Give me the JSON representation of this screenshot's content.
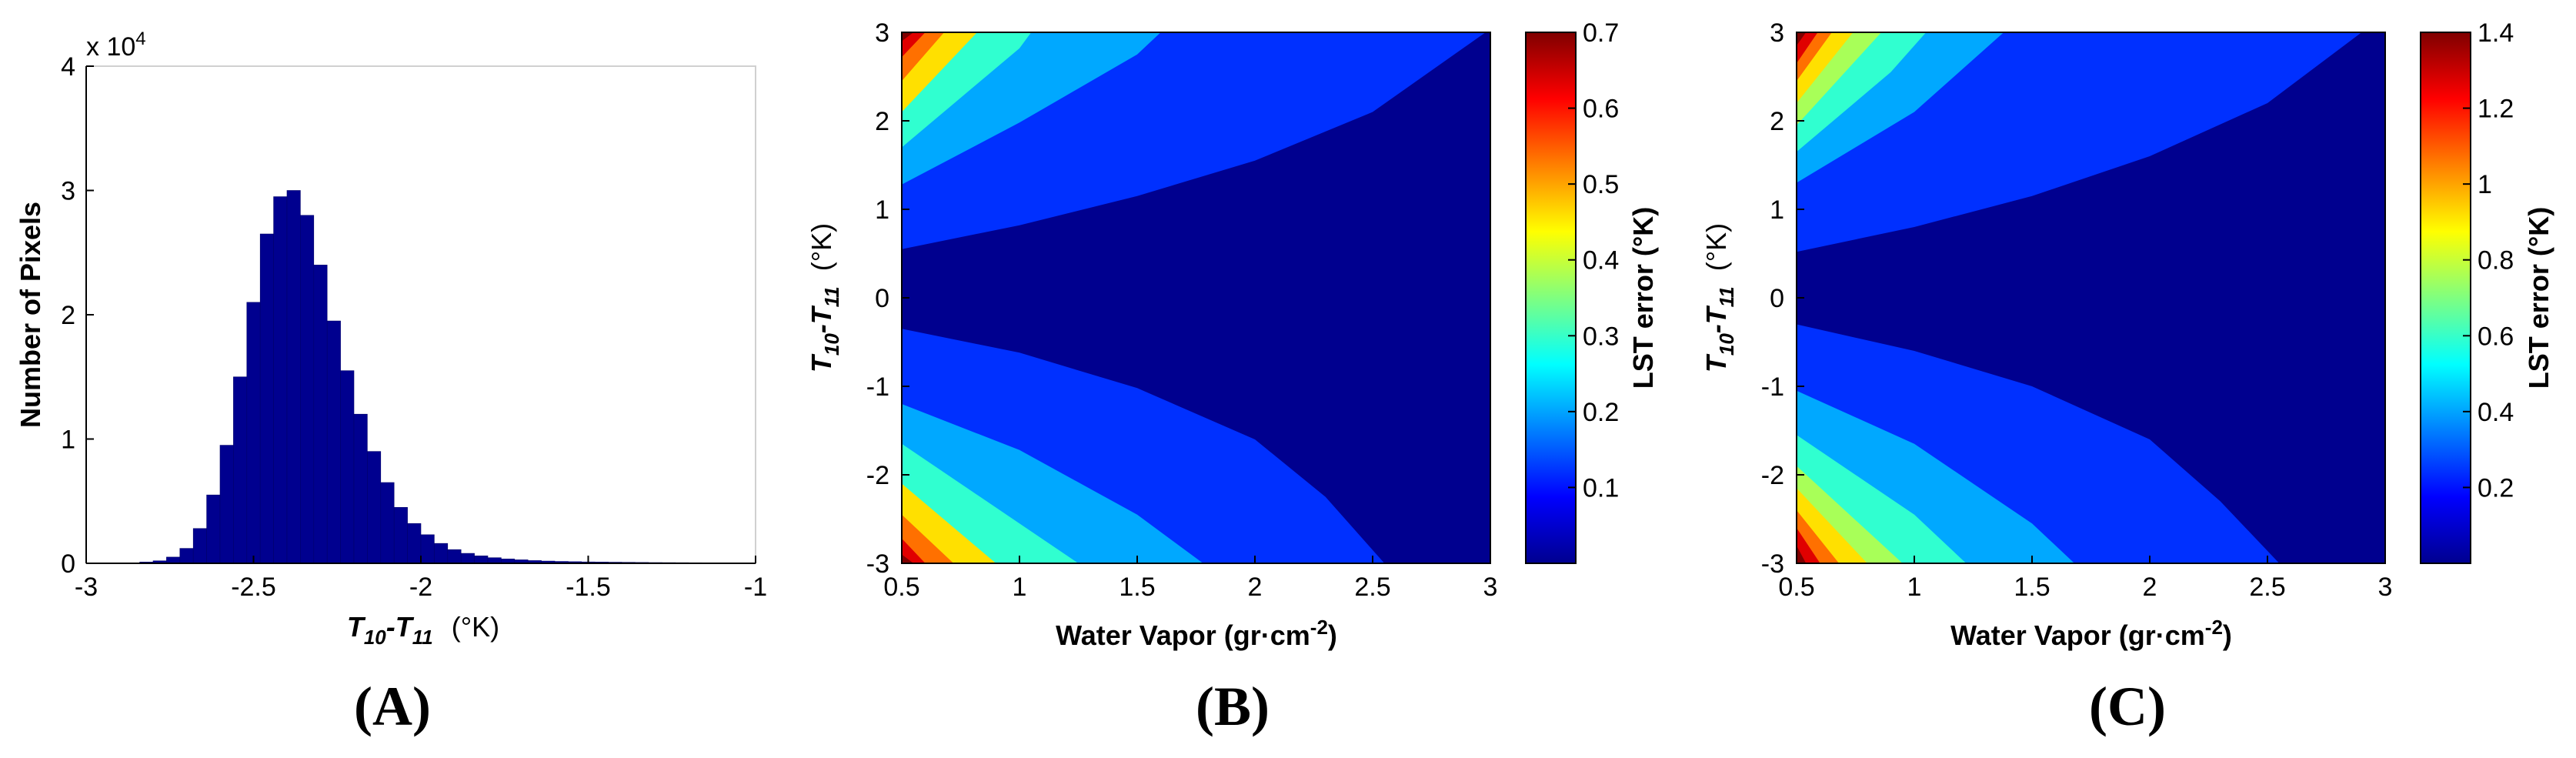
{
  "panels": {
    "a": {
      "letter": "(A)"
    },
    "b": {
      "letter": "(B)"
    },
    "c": {
      "letter": "(C)"
    }
  },
  "labels": {
    "a_ylabel": "Number of Pixels",
    "a_xlabel_T10": "T",
    "a_xlabel_sub10": "10",
    "a_xlabel_dash": "-T",
    "a_xlabel_sub11": "11",
    "a_xlabel_unit": "(°K)",
    "a_exponent_base": "x 10",
    "a_exponent_pow": "4",
    "contour_xlabel": "Water Vapor (gr·cm",
    "contour_xlabel_pow": "-2",
    "contour_xlabel_close": ")",
    "contour_ylabel_T": "T",
    "contour_ylabel_sub10": "10",
    "contour_ylabel_dash": "-T",
    "contour_ylabel_sub11": "11",
    "contour_ylabel_unit": "(°K)",
    "colorbar_label": "LST error (°K)"
  },
  "colors": {
    "bar": "#00008f",
    "jet": [
      "#00008f",
      "#0030ff",
      "#00a8ff",
      "#30ffd0",
      "#a8ff58",
      "#ffe000",
      "#ff7000",
      "#e00000",
      "#800000"
    ]
  },
  "chart_data": [
    {
      "id": "A",
      "type": "bar",
      "title": "",
      "xlabel": "T10-T11 (°K)",
      "ylabel": "Number of Pixels",
      "xlim": [
        -3,
        -1
      ],
      "ylim": [
        0,
        40000
      ],
      "xticks": [
        "-3",
        "-2.5",
        "-2",
        "-1.5",
        "-1"
      ],
      "xtick_values": [
        -3,
        -2.5,
        -2,
        -1.5,
        -1
      ],
      "yticks": [
        "0",
        "1",
        "2",
        "3",
        "4"
      ],
      "ytick_values": [
        0,
        10000,
        20000,
        30000,
        40000
      ],
      "y_exponent": "x 10^4",
      "bin_centers": [
        -2.82,
        -2.78,
        -2.74,
        -2.7,
        -2.66,
        -2.62,
        -2.58,
        -2.54,
        -2.5,
        -2.46,
        -2.42,
        -2.38,
        -2.34,
        -2.3,
        -2.26,
        -2.22,
        -2.18,
        -2.14,
        -2.1,
        -2.06,
        -2.02,
        -1.98,
        -1.94,
        -1.9,
        -1.86,
        -1.82,
        -1.78,
        -1.74,
        -1.7,
        -1.66,
        -1.62,
        -1.58,
        -1.54,
        -1.5,
        -1.46,
        -1.42,
        -1.38,
        -1.34,
        -1.3,
        -1.26,
        -1.22,
        -1.18,
        -1.14,
        -1.1
      ],
      "values": [
        100,
        200,
        500,
        1200,
        2800,
        5500,
        9500,
        15000,
        21000,
        26500,
        29500,
        30000,
        28000,
        24000,
        19500,
        15500,
        12000,
        9000,
        6500,
        4500,
        3200,
        2300,
        1600,
        1100,
        800,
        600,
        450,
        350,
        280,
        220,
        180,
        150,
        130,
        110,
        100,
        90,
        80,
        70,
        60,
        55,
        50,
        45,
        40,
        35
      ]
    },
    {
      "id": "B",
      "type": "heatmap",
      "subtype": "filled-contour",
      "xlabel": "Water Vapor (gr·cm-2)",
      "ylabel": "T10-T11 (°K)",
      "xlim": [
        0.5,
        3
      ],
      "ylim": [
        -3,
        3
      ],
      "xticks": [
        "0.5",
        "1",
        "1.5",
        "2",
        "2.5",
        "3"
      ],
      "xtick_values": [
        0.5,
        1,
        1.5,
        2,
        2.5,
        3
      ],
      "yticks": [
        "-3",
        "-2",
        "-1",
        "0",
        "1",
        "2",
        "3"
      ],
      "ytick_values": [
        -3,
        -2,
        -1,
        0,
        1,
        2,
        3
      ],
      "colorbar": {
        "label": "LST error (°K)",
        "range": [
          0,
          0.7
        ],
        "ticks": [
          "0.1",
          "0.2",
          "0.3",
          "0.4",
          "0.5",
          "0.6",
          "0.7"
        ],
        "tick_values": [
          0.1,
          0.2,
          0.3,
          0.4,
          0.5,
          0.6,
          0.7
        ]
      },
      "contour_boundaries": [
        {
          "level": 1,
          "upper": [
            [
              0.5,
              0.55
            ],
            [
              1.0,
              0.82
            ],
            [
              1.5,
              1.15
            ],
            [
              2.0,
              1.55
            ],
            [
              2.5,
              2.1
            ],
            [
              2.98,
              3.0
            ]
          ],
          "lower": [
            [
              0.5,
              -0.35
            ],
            [
              1.0,
              -0.62
            ],
            [
              1.5,
              -1.02
            ],
            [
              2.0,
              -1.6
            ],
            [
              2.3,
              -2.25
            ],
            [
              2.55,
              -3.0
            ]
          ]
        },
        {
          "level": 2,
          "upper": [
            [
              0.5,
              1.28
            ],
            [
              1.0,
              1.98
            ],
            [
              1.5,
              2.75
            ],
            [
              1.6,
              3.0
            ]
          ],
          "lower": [
            [
              0.5,
              -1.2
            ],
            [
              1.0,
              -1.72
            ],
            [
              1.5,
              -2.45
            ],
            [
              1.78,
              -3.0
            ]
          ]
        },
        {
          "level": 3,
          "upper": [
            [
              0.5,
              1.7
            ],
            [
              1.0,
              2.82
            ],
            [
              1.05,
              3.0
            ]
          ],
          "lower": [
            [
              0.5,
              -1.65
            ],
            [
              1.0,
              -2.55
            ],
            [
              1.25,
              -3.0
            ]
          ]
        },
        {
          "level": 4,
          "upper": [
            [
              0.5,
              2.1
            ],
            [
              0.82,
              3.0
            ]
          ],
          "lower": [
            [
              0.5,
              -2.1
            ],
            [
              0.9,
              -3.0
            ]
          ]
        },
        {
          "level": 5,
          "upper": [
            [
              0.5,
              2.45
            ],
            [
              0.68,
              3.0
            ]
          ],
          "lower": [
            [
              0.5,
              -2.45
            ],
            [
              0.72,
              -3.0
            ]
          ]
        },
        {
          "level": 6,
          "upper": [
            [
              0.5,
              2.72
            ],
            [
              0.6,
              3.0
            ]
          ],
          "lower": [
            [
              0.5,
              -2.72
            ],
            [
              0.6,
              -3.0
            ]
          ]
        },
        {
          "level": 7,
          "upper": [
            [
              0.5,
              2.9
            ],
            [
              0.55,
              3.0
            ]
          ],
          "lower": [
            [
              0.5,
              -2.9
            ],
            [
              0.55,
              -3.0
            ]
          ]
        }
      ]
    },
    {
      "id": "C",
      "type": "heatmap",
      "subtype": "filled-contour",
      "xlabel": "Water Vapor (gr·cm-2)",
      "ylabel": "T10-T11 (°K)",
      "xlim": [
        0.5,
        3
      ],
      "ylim": [
        -3,
        3
      ],
      "xticks": [
        "0.5",
        "1",
        "1.5",
        "2",
        "2.5",
        "3"
      ],
      "xtick_values": [
        0.5,
        1,
        1.5,
        2,
        2.5,
        3
      ],
      "yticks": [
        "-3",
        "-2",
        "-1",
        "0",
        "1",
        "2",
        "3"
      ],
      "ytick_values": [
        -3,
        -2,
        -1,
        0,
        1,
        2,
        3
      ],
      "colorbar": {
        "label": "LST error (°K)",
        "range": [
          0,
          1.4
        ],
        "ticks": [
          "0.2",
          "0.4",
          "0.6",
          "0.8",
          "1",
          "1.2",
          "1.4"
        ],
        "tick_values": [
          0.2,
          0.4,
          0.6,
          0.8,
          1,
          1.2,
          1.4
        ]
      },
      "contour_boundaries": [
        {
          "level": 1,
          "upper": [
            [
              0.5,
              0.52
            ],
            [
              1.0,
              0.8
            ],
            [
              1.5,
              1.15
            ],
            [
              2.0,
              1.6
            ],
            [
              2.5,
              2.2
            ],
            [
              2.9,
              3.0
            ]
          ],
          "lower": [
            [
              0.5,
              -0.3
            ],
            [
              1.0,
              -0.6
            ],
            [
              1.5,
              -1.0
            ],
            [
              2.0,
              -1.6
            ],
            [
              2.3,
              -2.3
            ],
            [
              2.55,
              -3.0
            ]
          ]
        },
        {
          "level": 2,
          "upper": [
            [
              0.5,
              1.3
            ],
            [
              1.0,
              2.1
            ],
            [
              1.38,
              3.0
            ]
          ],
          "lower": [
            [
              0.5,
              -1.05
            ],
            [
              1.0,
              -1.65
            ],
            [
              1.5,
              -2.55
            ],
            [
              1.68,
              -3.0
            ]
          ]
        },
        {
          "level": 3,
          "upper": [
            [
              0.5,
              1.65
            ],
            [
              0.9,
              2.55
            ],
            [
              1.05,
              3.0
            ]
          ],
          "lower": [
            [
              0.5,
              -1.55
            ],
            [
              1.0,
              -2.45
            ],
            [
              1.22,
              -3.0
            ]
          ]
        },
        {
          "level": 4,
          "upper": [
            [
              0.5,
              1.95
            ],
            [
              0.86,
              3.0
            ]
          ],
          "lower": [
            [
              0.5,
              -1.9
            ],
            [
              0.95,
              -3.0
            ]
          ]
        },
        {
          "level": 5,
          "upper": [
            [
              0.5,
              2.2
            ],
            [
              0.74,
              3.0
            ]
          ],
          "lower": [
            [
              0.5,
              -2.15
            ],
            [
              0.8,
              -3.0
            ]
          ]
        },
        {
          "level": 6,
          "upper": [
            [
              0.5,
              2.45
            ],
            [
              0.65,
              3.0
            ]
          ],
          "lower": [
            [
              0.5,
              -2.4
            ],
            [
              0.68,
              -3.0
            ]
          ]
        },
        {
          "level": 7,
          "upper": [
            [
              0.5,
              2.65
            ],
            [
              0.59,
              3.0
            ]
          ],
          "lower": [
            [
              0.5,
              -2.6
            ],
            [
              0.6,
              -3.0
            ]
          ]
        },
        {
          "level": 8,
          "upper": [
            [
              0.5,
              2.85
            ],
            [
              0.54,
              3.0
            ]
          ],
          "lower": [
            [
              0.5,
              -2.8
            ],
            [
              0.54,
              -3.0
            ]
          ]
        }
      ]
    }
  ]
}
